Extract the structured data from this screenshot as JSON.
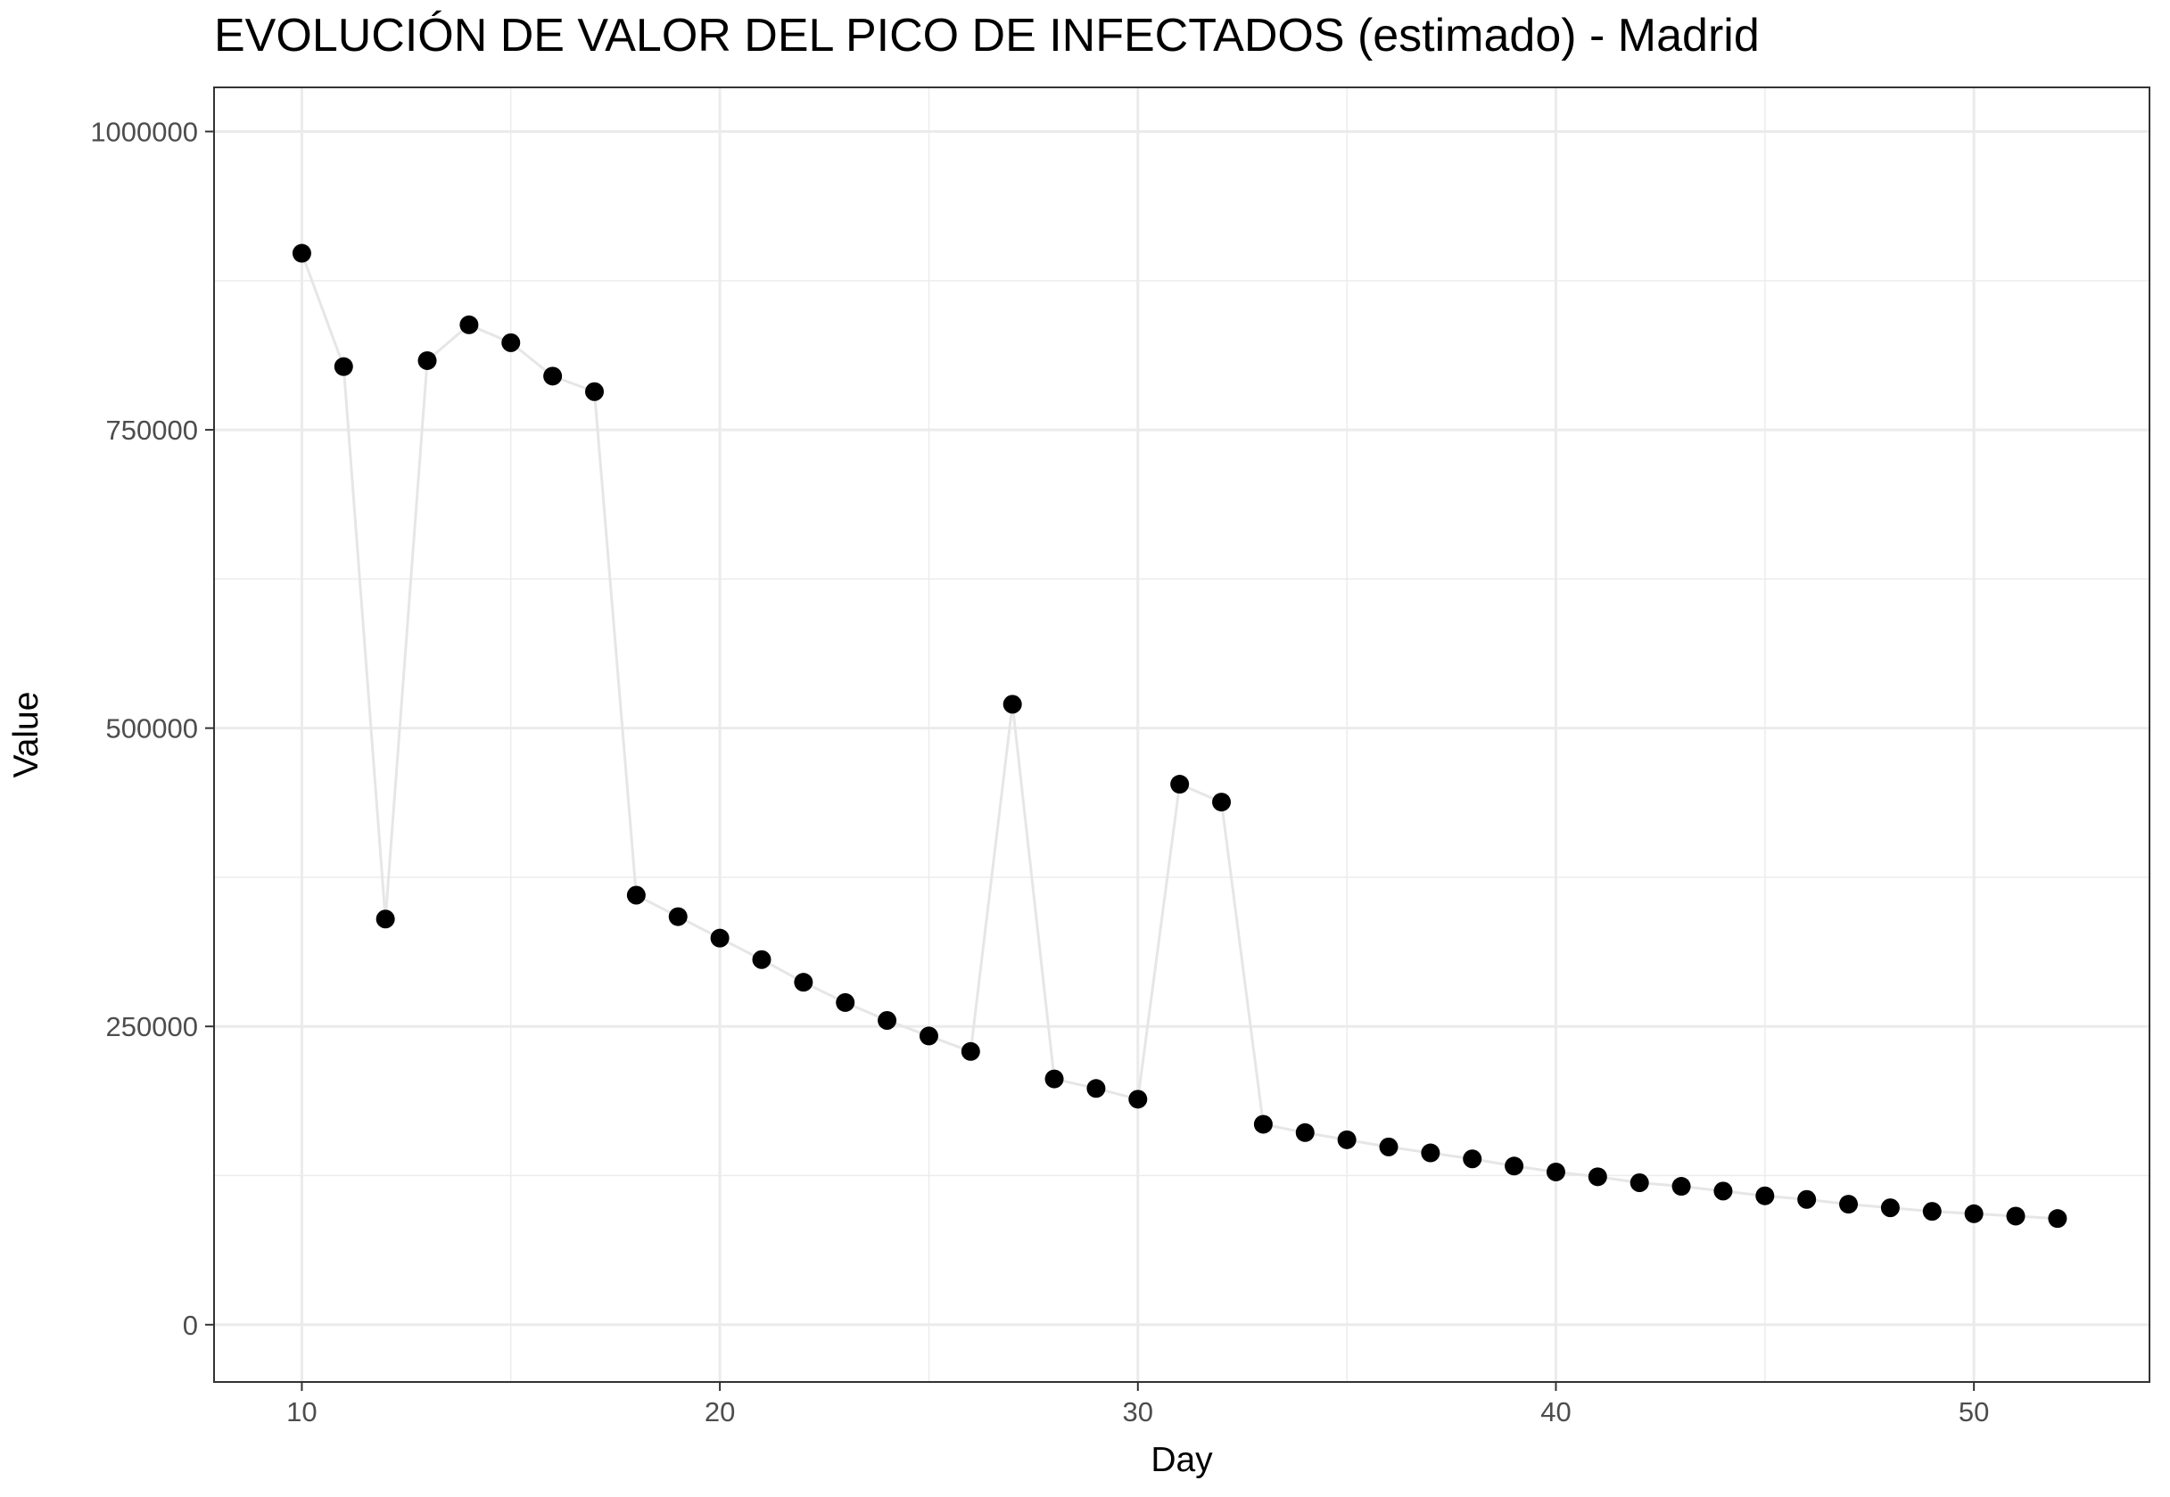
{
  "chart_data": {
    "type": "scatter",
    "title": "EVOLUCIÓN DE VALOR DEL PICO DE INFECTADOS (estimado) - Madrid",
    "xlabel": "Day",
    "ylabel": "Value",
    "xlim": [
      7.9,
      54.2
    ],
    "ylim": [
      -48000,
      1037000
    ],
    "xticks": [
      10,
      20,
      30,
      40,
      50
    ],
    "yticks": [
      0,
      250000,
      500000,
      750000,
      1000000
    ],
    "grid": true,
    "connect_points": true,
    "colors": {
      "point": "#000000",
      "line": "#e6e6e6",
      "grid": "#ebebeb",
      "panel_border": "#333333"
    },
    "series": [
      {
        "x": [
          10,
          11,
          12,
          13,
          14,
          15,
          16,
          17,
          18,
          19,
          20,
          21,
          22,
          23,
          24,
          25,
          26,
          27,
          28,
          29,
          30,
          31,
          32,
          33,
          34,
          35,
          36,
          37,
          38,
          39,
          40,
          41,
          42,
          43,
          44,
          45,
          46,
          47,
          48,
          49,
          50,
          51,
          52
        ],
        "values": [
          898000,
          803000,
          340000,
          808000,
          838000,
          823000,
          795000,
          782000,
          360000,
          342000,
          324000,
          306000,
          287000,
          270000,
          255000,
          242000,
          229000,
          520000,
          206000,
          198000,
          189000,
          453000,
          438000,
          168000,
          161000,
          155000,
          149000,
          144000,
          139000,
          133000,
          128000,
          124000,
          119000,
          116000,
          112000,
          108000,
          105000,
          101000,
          98000,
          95000,
          93000,
          91000,
          89000
        ]
      }
    ]
  }
}
